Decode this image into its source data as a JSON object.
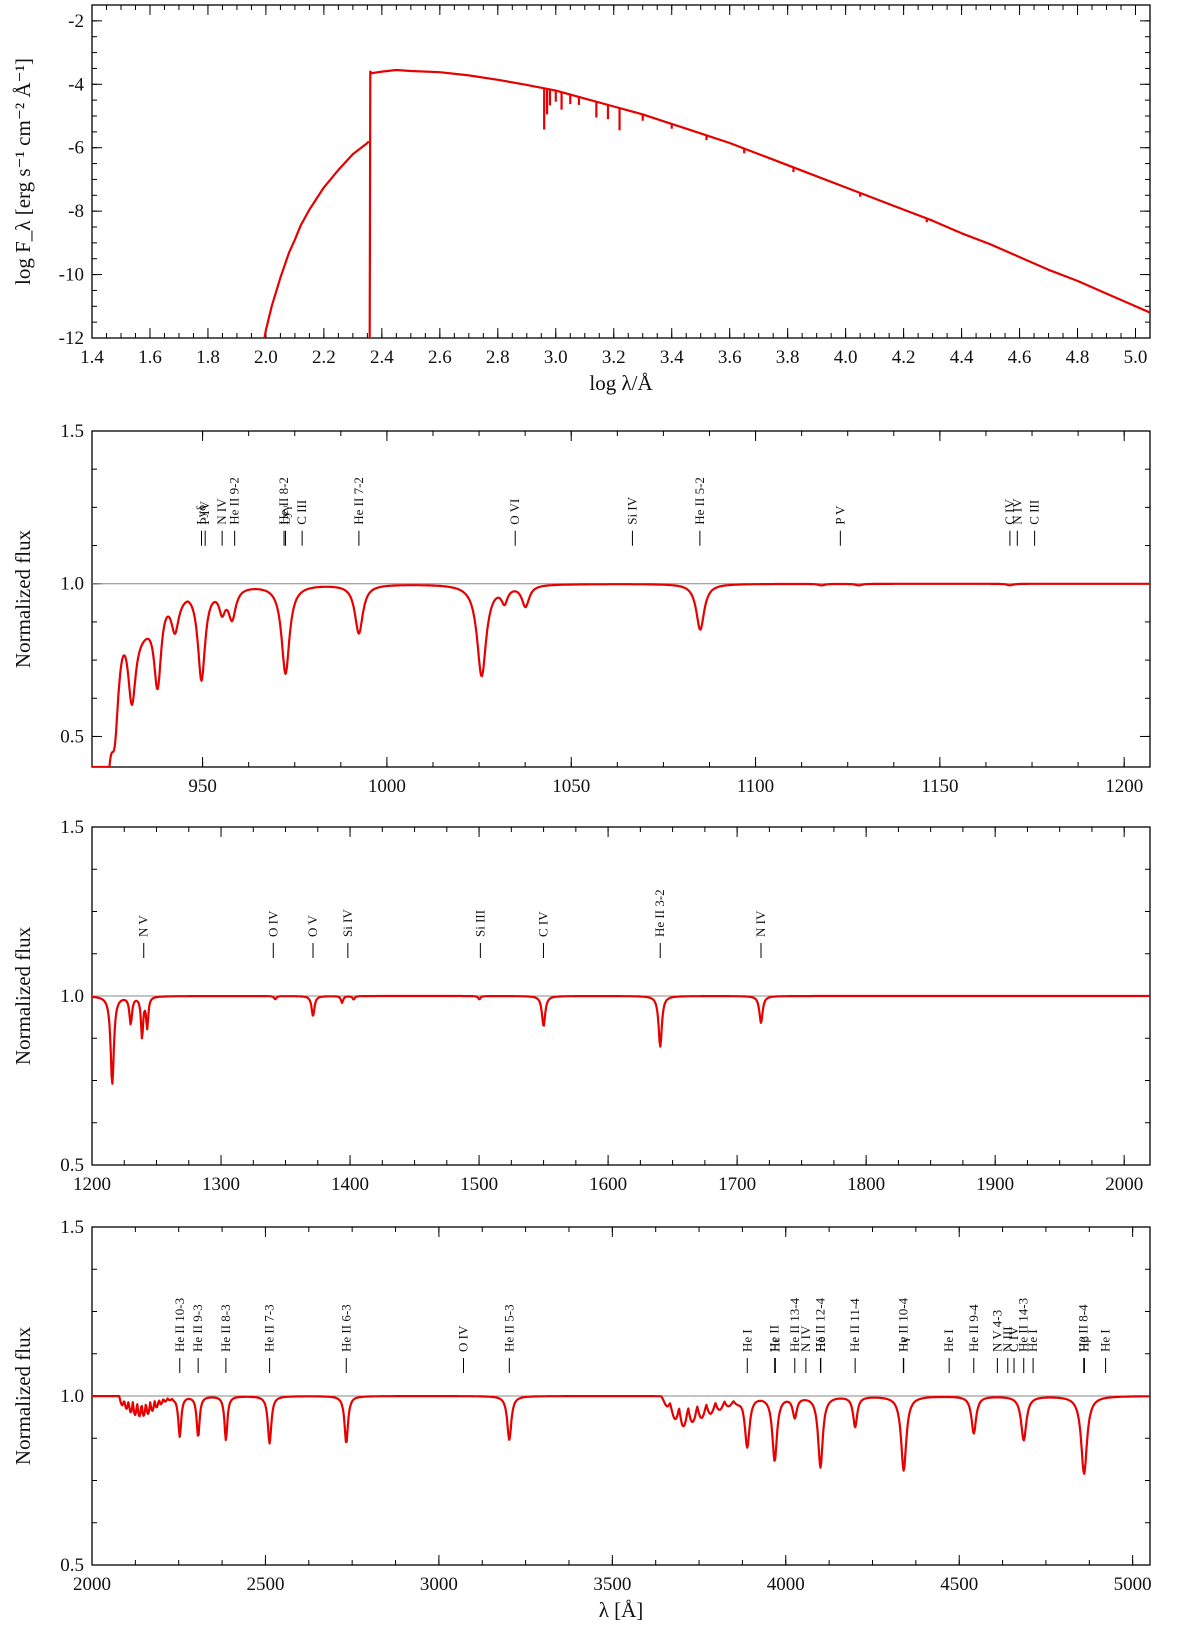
{
  "colors": {
    "spectrum": "#e60000",
    "reference_line": "#888888",
    "frame": "#000000"
  },
  "chart_data": [
    {
      "id": "sed",
      "type": "line",
      "xlabel": "log λ/Å",
      "ylabel": "log F_λ [erg s⁻¹ cm⁻² Å⁻¹]",
      "xlim": [
        1.4,
        5.05
      ],
      "ylim": [
        -12,
        -1.5
      ],
      "xticks": [
        1.4,
        1.6,
        1.8,
        2.0,
        2.2,
        2.4,
        2.6,
        2.8,
        3.0,
        3.2,
        3.4,
        3.6,
        3.8,
        4.0,
        4.2,
        4.4,
        4.6,
        4.8,
        5.0
      ],
      "xtick_labels": [
        "1.4",
        "1.6",
        "1.8",
        "2.0",
        "2.2",
        "2.4",
        "2.6",
        "2.8",
        "3.0",
        "3.2",
        "3.4",
        "3.6",
        "3.8",
        "4.0",
        "4.2",
        "4.4",
        "4.6",
        "4.8",
        "5.0"
      ],
      "yticks": [
        -12,
        -10,
        -8,
        -6,
        -4,
        -2
      ],
      "ytick_labels": [
        "-12",
        "-10",
        "-8",
        "-6",
        "-4",
        "-2"
      ],
      "series": [
        {
          "x": [
            1.995,
            2.0,
            2.02,
            2.05,
            2.08,
            2.1,
            2.12,
            2.15,
            2.2,
            2.25,
            2.3,
            2.35,
            2.355
          ],
          "y": [
            -12,
            -11.75,
            -11.0,
            -10.1,
            -9.3,
            -8.9,
            -8.45,
            -7.95,
            -7.25,
            -6.7,
            -6.2,
            -5.85,
            -5.8
          ]
        },
        {
          "x": [
            2.358,
            2.36,
            2.365,
            2.4,
            2.45,
            2.5,
            2.6,
            2.7,
            2.8,
            2.9,
            3.0,
            3.1,
            3.2,
            3.3,
            3.4,
            3.5,
            3.6,
            3.7,
            3.8,
            3.9,
            4.0,
            4.1,
            4.2,
            4.3,
            4.4,
            4.5,
            4.6,
            4.7,
            4.8,
            4.9,
            5.0,
            5.05
          ],
          "y": [
            -12,
            -3.6,
            -3.65,
            -3.6,
            -3.55,
            -3.58,
            -3.62,
            -3.72,
            -3.86,
            -4.02,
            -4.2,
            -4.45,
            -4.7,
            -4.95,
            -5.25,
            -5.55,
            -5.85,
            -6.2,
            -6.55,
            -6.9,
            -7.25,
            -7.6,
            -7.95,
            -8.3,
            -8.7,
            -9.05,
            -9.45,
            -9.85,
            -10.2,
            -10.6,
            -11.0,
            -11.2
          ]
        }
      ],
      "absorption_lines": [
        {
          "x": 2.96,
          "d": 1.3
        },
        {
          "x": 2.97,
          "d": 0.8
        },
        {
          "x": 2.98,
          "d": 0.5
        },
        {
          "x": 3.0,
          "d": 0.35
        },
        {
          "x": 3.02,
          "d": 0.55
        },
        {
          "x": 3.05,
          "d": 0.3
        },
        {
          "x": 3.08,
          "d": 0.25
        },
        {
          "x": 3.14,
          "d": 0.5
        },
        {
          "x": 3.18,
          "d": 0.45
        },
        {
          "x": 3.22,
          "d": 0.7
        },
        {
          "x": 3.3,
          "d": 0.2
        },
        {
          "x": 3.4,
          "d": 0.15
        },
        {
          "x": 3.52,
          "d": 0.15
        },
        {
          "x": 3.65,
          "d": 0.15
        },
        {
          "x": 3.82,
          "d": 0.15
        },
        {
          "x": 4.05,
          "d": 0.12
        },
        {
          "x": 4.28,
          "d": 0.12
        }
      ]
    },
    {
      "id": "fuv",
      "type": "line",
      "xlabel": "",
      "ylabel": "Normalized flux",
      "xlim": [
        920,
        1207
      ],
      "ylim": [
        0.4,
        1.5
      ],
      "xticks": [
        950,
        1000,
        1050,
        1100,
        1150,
        1200
      ],
      "xtick_labels": [
        "950",
        "1000",
        "1050",
        "1100",
        "1150",
        "1200"
      ],
      "yticks": [
        0.5,
        1.0,
        1.5
      ],
      "ytick_labels": [
        "0.5",
        "1.0",
        "1.5"
      ],
      "reference": 1.0,
      "lines": [
        {
          "c": 920.5,
          "d": 0.55,
          "w": 2.2
        },
        {
          "c": 923,
          "d": 0.55,
          "w": 1.4
        },
        {
          "c": 926.2,
          "d": 0.27,
          "w": 1.3
        },
        {
          "c": 930.8,
          "d": 0.27,
          "w": 1.3
        },
        {
          "c": 937.8,
          "d": 0.28,
          "w": 1.2
        },
        {
          "c": 942.5,
          "d": 0.11,
          "w": 1.2
        },
        {
          "c": 949.7,
          "d": 0.3,
          "w": 1.2
        },
        {
          "c": 955.3,
          "d": 0.07,
          "w": 1.0
        },
        {
          "c": 958.0,
          "d": 0.1,
          "w": 1.2
        },
        {
          "c": 972.5,
          "d": 0.29,
          "w": 1.3
        },
        {
          "c": 992.4,
          "d": 0.16,
          "w": 1.3
        },
        {
          "c": 1025.7,
          "d": 0.3,
          "w": 1.5
        },
        {
          "c": 1031.9,
          "d": 0.05,
          "w": 1.0
        },
        {
          "c": 1037.6,
          "d": 0.07,
          "w": 1.2
        },
        {
          "c": 1085,
          "d": 0.15,
          "w": 1.3
        },
        {
          "c": 1117.9,
          "d": 0.005,
          "w": 1.0
        },
        {
          "c": 1128,
          "d": 0.005,
          "w": 1.0
        },
        {
          "c": 1169,
          "d": 0.005,
          "w": 1.0
        }
      ],
      "labels": [
        {
          "text": "Lyδ",
          "x": 949.7
        },
        {
          "text": "P IV",
          "x": 950.7
        },
        {
          "text": "N IV",
          "x": 955.3
        },
        {
          "text": "He II 9-2",
          "x": 958.7
        },
        {
          "text": "He II 8-2",
          "x": 972.1
        },
        {
          "text": "Lyγ",
          "x": 972.5
        },
        {
          "text": "C III",
          "x": 977
        },
        {
          "text": "He II 7-2",
          "x": 992.4
        },
        {
          "text": "O VI",
          "x": 1034.8
        },
        {
          "text": "Si IV",
          "x": 1066.6
        },
        {
          "text": "He II 5-2",
          "x": 1084.9
        },
        {
          "text": "P V",
          "x": 1123
        },
        {
          "text": "C IV",
          "x": 1169
        },
        {
          "text": "N IV",
          "x": 1171
        },
        {
          "text": "C III",
          "x": 1175.7
        }
      ]
    },
    {
      "id": "uv",
      "type": "line",
      "xlabel": "",
      "ylabel": "Normalized flux",
      "xlim": [
        1200,
        2020
      ],
      "ylim": [
        0.5,
        1.5
      ],
      "xticks": [
        1200,
        1300,
        1400,
        1500,
        1600,
        1700,
        1800,
        1900,
        2000
      ],
      "xtick_labels": [
        "1200",
        "1300",
        "1400",
        "1500",
        "1600",
        "1700",
        "1800",
        "1900",
        "2000"
      ],
      "yticks": [
        0.5,
        1.0,
        1.5
      ],
      "ytick_labels": [
        "0.5",
        "1.0",
        "1.5"
      ],
      "reference": 1.0,
      "lines": [
        {
          "c": 1215.7,
          "d": 0.26,
          "w": 1.5
        },
        {
          "c": 1230,
          "d": 0.08,
          "w": 1.2
        },
        {
          "c": 1238.8,
          "d": 0.12,
          "w": 1.0
        },
        {
          "c": 1242.8,
          "d": 0.09,
          "w": 1.0
        },
        {
          "c": 1342,
          "d": 0.01,
          "w": 1.0
        },
        {
          "c": 1371.3,
          "d": 0.06,
          "w": 1.3
        },
        {
          "c": 1393.8,
          "d": 0.02,
          "w": 1.0
        },
        {
          "c": 1402.8,
          "d": 0.01,
          "w": 1.0
        },
        {
          "c": 1500.2,
          "d": 0.01,
          "w": 1.0
        },
        {
          "c": 1550,
          "d": 0.09,
          "w": 1.5
        },
        {
          "c": 1640.4,
          "d": 0.15,
          "w": 1.5
        },
        {
          "c": 1718.5,
          "d": 0.08,
          "w": 1.5
        }
      ],
      "labels": [
        {
          "text": "N V",
          "x": 1240.1
        },
        {
          "text": "O IV",
          "x": 1340.5
        },
        {
          "text": "O V",
          "x": 1371.3
        },
        {
          "text": "Si IV",
          "x": 1398.3
        },
        {
          "text": "Si III",
          "x": 1501
        },
        {
          "text": "C IV",
          "x": 1549.9
        },
        {
          "text": "He II 3-2",
          "x": 1640.4
        },
        {
          "text": "N IV",
          "x": 1718.5
        }
      ]
    },
    {
      "id": "opt",
      "type": "line",
      "xlabel": "λ [Å]",
      "ylabel": "Normalized flux",
      "xlim": [
        2000,
        5050
      ],
      "ylim": [
        0.5,
        1.5
      ],
      "xticks": [
        2000,
        2500,
        3000,
        3500,
        4000,
        4500,
        5000
      ],
      "xtick_labels": [
        "2000",
        "2500",
        "3000",
        "3500",
        "4000",
        "4500",
        "5000"
      ],
      "yticks": [
        0.5,
        1.0,
        1.5
      ],
      "ytick_labels": [
        "0.5",
        "1.0",
        "1.5"
      ],
      "reference": 1.0,
      "lines": [
        {
          "c": 2253,
          "d": 0.12,
          "w": 5
        },
        {
          "c": 2306,
          "d": 0.12,
          "w": 5
        },
        {
          "c": 2386,
          "d": 0.13,
          "w": 5
        },
        {
          "c": 2512,
          "d": 0.14,
          "w": 6
        },
        {
          "c": 2733,
          "d": 0.14,
          "w": 6
        },
        {
          "c": 3203,
          "d": 0.13,
          "w": 7
        },
        {
          "c": 3889,
          "d": 0.15,
          "w": 8
        },
        {
          "c": 3968,
          "d": 0.19,
          "w": 8
        },
        {
          "c": 4026,
          "d": 0.06,
          "w": 7
        },
        {
          "c": 4100,
          "d": 0.21,
          "w": 8
        },
        {
          "c": 4200,
          "d": 0.09,
          "w": 7
        },
        {
          "c": 4340,
          "d": 0.22,
          "w": 9
        },
        {
          "c": 4542,
          "d": 0.11,
          "w": 8
        },
        {
          "c": 4686,
          "d": 0.13,
          "w": 9
        },
        {
          "c": 4860,
          "d": 0.23,
          "w": 10
        }
      ],
      "labels": [
        {
          "text": "He II 10-3",
          "x": 2253
        },
        {
          "text": "He II 9-3",
          "x": 2306
        },
        {
          "text": "He II 8-3",
          "x": 2386
        },
        {
          "text": "He II 7-3",
          "x": 2512
        },
        {
          "text": "He II 6-3",
          "x": 2733
        },
        {
          "text": "O IV",
          "x": 3071
        },
        {
          "text": "He II 5-3",
          "x": 3203
        },
        {
          "text": "He I",
          "x": 3889
        },
        {
          "text": "He II",
          "x": 3968
        },
        {
          "text": "Hε",
          "x": 3970
        },
        {
          "text": "He II 13-4",
          "x": 4026
        },
        {
          "text": "N IV",
          "x": 4058
        },
        {
          "text": "He II 12-4",
          "x": 4100
        },
        {
          "text": "Hδ",
          "x": 4101
        },
        {
          "text": "He II 11-4",
          "x": 4200
        },
        {
          "text": "He II 10-4",
          "x": 4339
        },
        {
          "text": "Hγ",
          "x": 4340
        },
        {
          "text": "He I",
          "x": 4471
        },
        {
          "text": "He II 9-4",
          "x": 4542
        },
        {
          "text": "N V 4-3",
          "x": 4610
        },
        {
          "text": "N III",
          "x": 4640
        },
        {
          "text": "C IV",
          "x": 4658
        },
        {
          "text": "He II 14-3",
          "x": 4686
        },
        {
          "text": "He I",
          "x": 4713
        },
        {
          "text": "He II 8-4",
          "x": 4859
        },
        {
          "text": "Hβ",
          "x": 4861
        },
        {
          "text": "He I",
          "x": 4922
        }
      ]
    }
  ]
}
